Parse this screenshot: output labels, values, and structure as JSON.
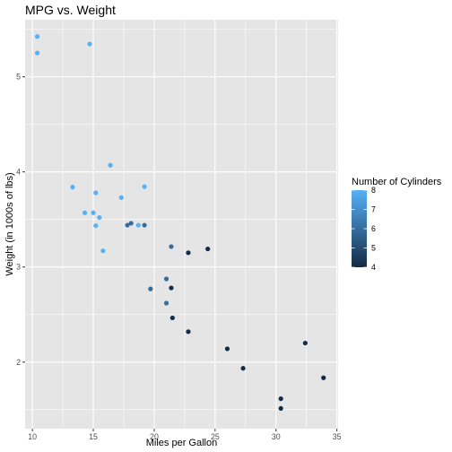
{
  "chart_data": {
    "type": "scatter",
    "title": "MPG vs. Weight",
    "xlabel": "Miles per Gallon",
    "ylabel": "Weight (in 1000s of lbs)",
    "xlim": [
      9.4,
      35.1
    ],
    "ylim": [
      1.3,
      5.6
    ],
    "xticks": [
      10,
      15,
      20,
      25,
      30,
      35
    ],
    "yticks": [
      2,
      3,
      4,
      5
    ],
    "grid": true,
    "panel_background": "#e5e5e5",
    "grid_color": "#ffffff",
    "legend": {
      "title": "Number of Cylinders",
      "placement": "right",
      "type": "colorbar",
      "range": [
        4,
        8
      ],
      "ticks": [
        4,
        5,
        6,
        7,
        8
      ],
      "color_low": "#132b43",
      "color_high": "#56b1f7"
    },
    "points": [
      {
        "x": 21.0,
        "y": 2.62,
        "cyl": 6
      },
      {
        "x": 21.0,
        "y": 2.875,
        "cyl": 6
      },
      {
        "x": 22.8,
        "y": 2.32,
        "cyl": 4
      },
      {
        "x": 21.4,
        "y": 3.215,
        "cyl": 6
      },
      {
        "x": 18.7,
        "y": 3.44,
        "cyl": 8
      },
      {
        "x": 18.1,
        "y": 3.46,
        "cyl": 6
      },
      {
        "x": 14.3,
        "y": 3.57,
        "cyl": 8
      },
      {
        "x": 24.4,
        "y": 3.19,
        "cyl": 4
      },
      {
        "x": 22.8,
        "y": 3.15,
        "cyl": 4
      },
      {
        "x": 19.2,
        "y": 3.44,
        "cyl": 6
      },
      {
        "x": 17.8,
        "y": 3.44,
        "cyl": 6
      },
      {
        "x": 16.4,
        "y": 4.07,
        "cyl": 8
      },
      {
        "x": 17.3,
        "y": 3.73,
        "cyl": 8
      },
      {
        "x": 15.2,
        "y": 3.78,
        "cyl": 8
      },
      {
        "x": 10.4,
        "y": 5.25,
        "cyl": 8
      },
      {
        "x": 10.4,
        "y": 5.424,
        "cyl": 8
      },
      {
        "x": 14.7,
        "y": 5.345,
        "cyl": 8
      },
      {
        "x": 32.4,
        "y": 2.2,
        "cyl": 4
      },
      {
        "x": 30.4,
        "y": 1.615,
        "cyl": 4
      },
      {
        "x": 33.9,
        "y": 1.835,
        "cyl": 4
      },
      {
        "x": 21.5,
        "y": 2.465,
        "cyl": 4
      },
      {
        "x": 15.5,
        "y": 3.52,
        "cyl": 8
      },
      {
        "x": 15.2,
        "y": 3.435,
        "cyl": 8
      },
      {
        "x": 13.3,
        "y": 3.84,
        "cyl": 8
      },
      {
        "x": 19.2,
        "y": 3.845,
        "cyl": 8
      },
      {
        "x": 27.3,
        "y": 1.935,
        "cyl": 4
      },
      {
        "x": 26.0,
        "y": 2.14,
        "cyl": 4
      },
      {
        "x": 30.4,
        "y": 1.513,
        "cyl": 4
      },
      {
        "x": 15.8,
        "y": 3.17,
        "cyl": 8
      },
      {
        "x": 19.7,
        "y": 2.77,
        "cyl": 6
      },
      {
        "x": 15.0,
        "y": 3.57,
        "cyl": 8
      },
      {
        "x": 21.4,
        "y": 2.78,
        "cyl": 4
      }
    ]
  }
}
